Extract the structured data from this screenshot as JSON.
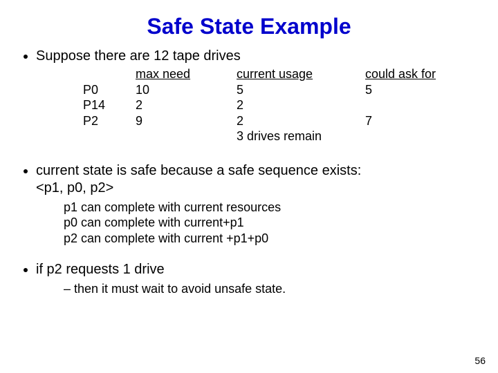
{
  "title": "Safe State Example",
  "title_color": "#0000cc",
  "bullet1": "Suppose there are 12 tape drives",
  "table": {
    "headers": {
      "proc": "",
      "max": "max need",
      "cur": "current usage",
      "ask": "could ask for"
    },
    "rows": [
      {
        "proc": "P0",
        "max": "10",
        "cur": "5",
        "ask": "5"
      },
      {
        "proc": "P14",
        "max": "2",
        "cur": "2",
        "ask": ""
      },
      {
        "proc": "P2",
        "max": "9",
        "cur": "2",
        "ask": "7"
      }
    ],
    "footer": "3 drives remain"
  },
  "bullet2_l1": "current state is safe because a safe sequence exists:",
  "bullet2_l2": "<p1, p0, p2>",
  "sub2": [
    "p1 can complete with current resources",
    "p0 can complete with current+p1",
    "p2 can complete with current +p1+p0"
  ],
  "bullet3": "if p2 requests 1 drive",
  "sub3": [
    "then it must wait to avoid unsafe state."
  ],
  "page_number": "56"
}
